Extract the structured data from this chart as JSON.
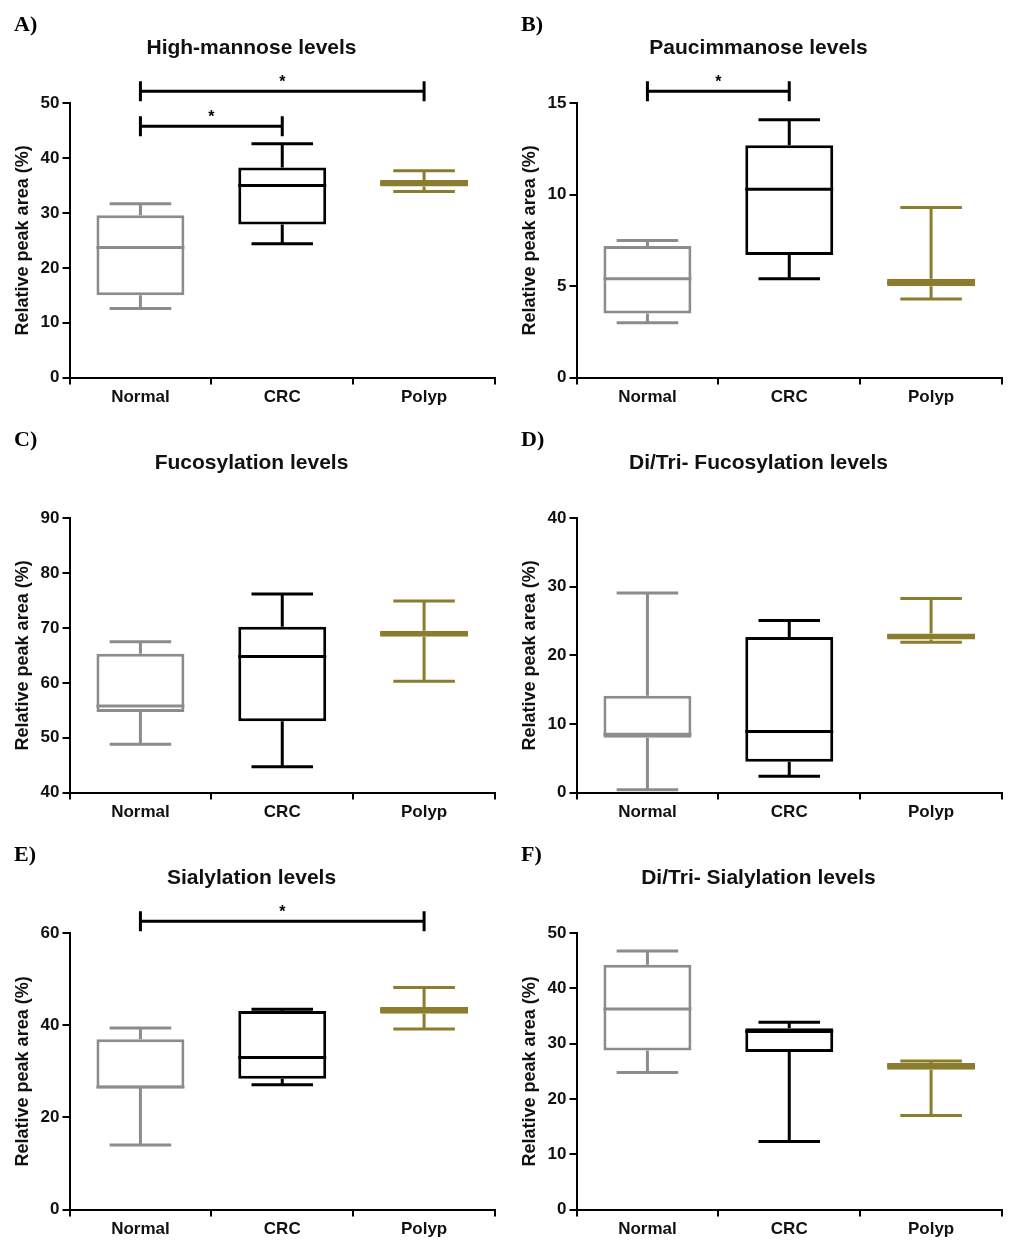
{
  "chart_data": [
    {
      "type": "box",
      "title": "High-mannose levels",
      "ylabel": "Relative peak area (%)",
      "categories": [
        "Normal",
        "CRC",
        "Polyp"
      ],
      "colors": [
        "#8c8c8c",
        "#000000",
        "#8b7d2e"
      ],
      "ylim": [
        0,
        50
      ],
      "yticks": [
        0,
        10,
        20,
        30,
        40,
        50
      ],
      "boxes": [
        {
          "low": 12.6,
          "q1": 15.0,
          "median": 23.7,
          "q3": 29.6,
          "high": 31.7
        },
        {
          "low": 24.4,
          "q1": 27.9,
          "median": 35.0,
          "q3": 38.3,
          "high": 42.6
        },
        {
          "low": 33.9,
          "q1": 34.8,
          "median": 35.4,
          "q3": 36.0,
          "high": 37.7
        }
      ],
      "annotations": [
        "A)",
        "*",
        "*"
      ]
    },
    {
      "type": "box",
      "title": "Paucimmanose levels",
      "ylabel": "Relative peak area (%)",
      "categories": [
        "Normal",
        "CRC",
        "Polyp"
      ],
      "colors": [
        "#8c8c8c",
        "#000000",
        "#8b7d2e"
      ],
      "ylim": [
        0,
        15
      ],
      "yticks": [
        0,
        5,
        10,
        15
      ],
      "boxes": [
        {
          "low": 3.0,
          "q1": 3.5,
          "median": 5.4,
          "q3": 7.2,
          "high": 7.5
        },
        {
          "low": 5.4,
          "q1": 6.7,
          "median": 10.3,
          "q3": 12.7,
          "high": 14.1
        },
        {
          "low": 4.3,
          "q1": 5.0,
          "median": 5.2,
          "q3": 5.4,
          "high": 9.3
        }
      ],
      "annotations": [
        "B)",
        "*"
      ]
    },
    {
      "type": "box",
      "title": "Fucosylation levels",
      "ylabel": "Relative peak area (%)",
      "categories": [
        "Normal",
        "CRC",
        "Polyp"
      ],
      "colors": [
        "#8c8c8c",
        "#000000",
        "#8b7d2e"
      ],
      "ylim": [
        40,
        90
      ],
      "yticks": [
        40,
        50,
        60,
        70,
        80,
        90
      ],
      "boxes": [
        {
          "low": 48.8,
          "q1": 54.7,
          "median": 55.8,
          "q3": 65.3,
          "high": 67.5
        },
        {
          "low": 44.7,
          "q1": 53.0,
          "median": 64.8,
          "q3": 70.2,
          "high": 76.2
        },
        {
          "low": 60.3,
          "q1": 68.4,
          "median": 69.0,
          "q3": 69.5,
          "high": 74.9
        }
      ],
      "annotations": [
        "C)"
      ]
    },
    {
      "type": "box",
      "title": "Di/Tri- Fucosylation levels",
      "ylabel": "Relative peak area (%)",
      "categories": [
        "Normal",
        "CRC",
        "Polyp"
      ],
      "colors": [
        "#8c8c8c",
        "#000000",
        "#8b7d2e"
      ],
      "ylim": [
        0,
        40
      ],
      "yticks": [
        0,
        10,
        20,
        30,
        40
      ],
      "boxes": [
        {
          "low": 0.4,
          "q1": 8.0,
          "median": 8.5,
          "q3": 14.1,
          "high": 29.1
        },
        {
          "low": 2.4,
          "q1": 4.5,
          "median": 8.9,
          "q3": 22.7,
          "high": 25.1
        },
        {
          "low": 21.9,
          "q1": 22.3,
          "median": 22.8,
          "q3": 23.2,
          "high": 28.3
        }
      ],
      "annotations": [
        "D)"
      ]
    },
    {
      "type": "box",
      "title": "Sialylation levels",
      "ylabel": "Relative peak area (%)",
      "categories": [
        "Normal",
        "CRC",
        "Polyp"
      ],
      "colors": [
        "#8c8c8c",
        "#000000",
        "#8b7d2e"
      ],
      "ylim": [
        0,
        60
      ],
      "yticks": [
        0,
        20,
        40,
        60
      ],
      "boxes": [
        {
          "low": 14.0,
          "q1": 26.3,
          "median": 26.6,
          "q3": 37.0,
          "high": 39.4
        },
        {
          "low": 27.1,
          "q1": 28.4,
          "median": 33.0,
          "q3": 43.1,
          "high": 43.5
        },
        {
          "low": 39.2,
          "q1": 42.5,
          "median": 43.3,
          "q3": 44.0,
          "high": 48.2
        }
      ],
      "annotations": [
        "E)",
        "*"
      ]
    },
    {
      "type": "box",
      "title": "Di/Tri- Sialylation levels",
      "ylabel": "Relative peak area (%)",
      "categories": [
        "Normal",
        "CRC",
        "Polyp"
      ],
      "colors": [
        "#8c8c8c",
        "#000000",
        "#8b7d2e"
      ],
      "ylim": [
        0,
        50
      ],
      "yticks": [
        0,
        10,
        20,
        30,
        40,
        50
      ],
      "boxes": [
        {
          "low": 24.8,
          "q1": 28.8,
          "median": 36.3,
          "q3": 44.3,
          "high": 46.8
        },
        {
          "low": 12.3,
          "q1": 28.5,
          "median": 32.2,
          "q3": 32.8,
          "high": 33.9
        },
        {
          "low": 17.0,
          "q1": 25.3,
          "median": 26.0,
          "q3": 26.5,
          "high": 26.9
        }
      ],
      "annotations": [
        "F)"
      ]
    }
  ]
}
